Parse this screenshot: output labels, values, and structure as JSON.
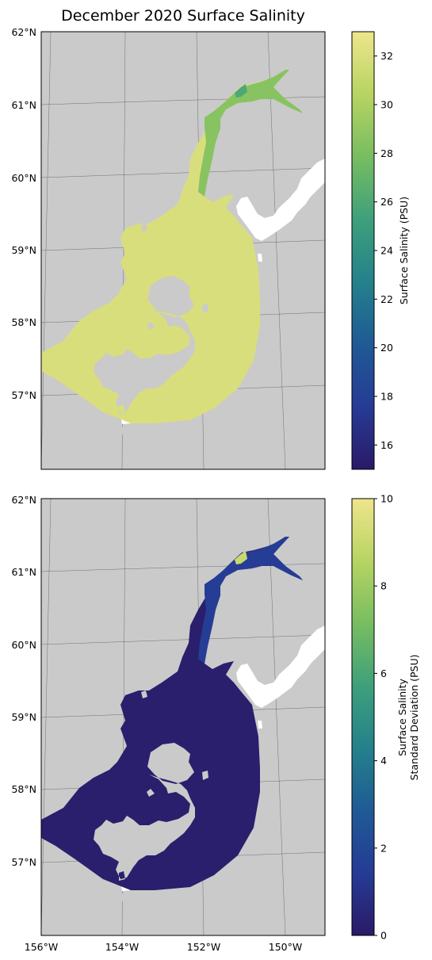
{
  "title": "December 2020 Surface Salinity",
  "colors": {
    "land": "#cacaca",
    "frame": "#000000",
    "grid": "#000000",
    "cmap_stops": [
      "#2a1a67",
      "#263b95",
      "#1f5a95",
      "#24818b",
      "#3ea07b",
      "#78bd61",
      "#b7d462",
      "#efe58c"
    ]
  },
  "chart_data": [
    {
      "type": "heatmap",
      "map": "Cook Inlet / Shelikof Strait, Alaska",
      "lat_ticks": [
        "62°N",
        "61°N",
        "60°N",
        "59°N",
        "58°N",
        "57°N"
      ],
      "lon_ticks": [],
      "colorbar": {
        "label": "Surface Salinity (PSU)",
        "range": [
          15,
          33
        ],
        "ticks": [
          16,
          18,
          20,
          22,
          24,
          26,
          28,
          30,
          32
        ]
      },
      "field": {
        "ocean_value": 32,
        "upper_inlet_value": 28.5,
        "head_value": 26
      }
    },
    {
      "type": "heatmap",
      "map": "Cook Inlet / Shelikof Strait, Alaska",
      "lat_ticks": [
        "62°N",
        "61°N",
        "60°N",
        "59°N",
        "58°N",
        "57°N"
      ],
      "lon_ticks": [
        "156°W",
        "154°W",
        "152°W",
        "150°W"
      ],
      "colorbar": {
        "label_lines": [
          "Surface Salinity",
          "Standard Deviation (PSU)"
        ],
        "range": [
          0,
          10
        ],
        "ticks": [
          0,
          2,
          4,
          6,
          8,
          10
        ]
      },
      "field": {
        "ocean_value": 0.2,
        "upper_inlet_value": 1.5,
        "head_value": 9
      }
    }
  ]
}
